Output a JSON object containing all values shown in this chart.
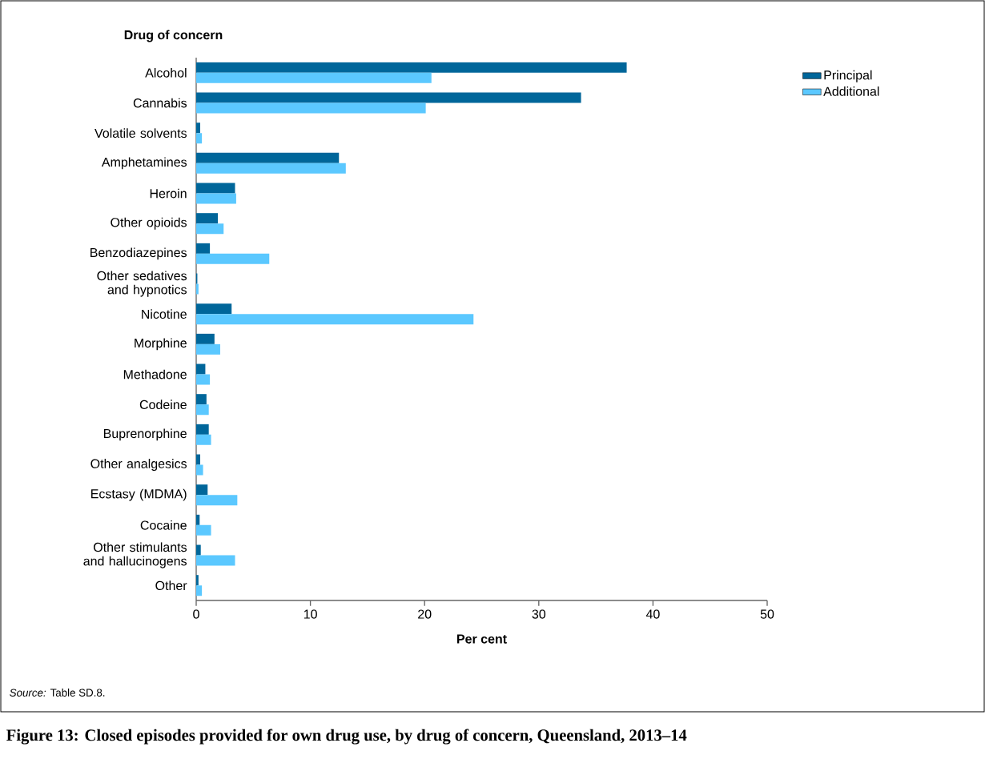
{
  "chart_data": {
    "type": "bar",
    "orientation": "horizontal",
    "title": "Figure 13: Closed episodes provided for own drug use, by drug of concern, Queensland, 2013–14",
    "ylabel": "Drug of concern",
    "xlabel": "Per cent",
    "annotations": [
      "*Source:* Table SD.8."
    ],
    "categories": [
      "Alcohol",
      "Cannabis",
      "Volatile solvents",
      "Amphetamines",
      "Heroin",
      "Other opioids",
      "Benzodiazepines",
      "Other sedatives and hypnotics",
      "Nicotine",
      "Morphine",
      "Methadone",
      "Codeine",
      "Buprenorphine",
      "Other analgesics",
      "Ecstasy (MDMA)",
      "Cocaine",
      "Other stimulants and hallucinogens",
      "Other"
    ],
    "series": [
      {
        "name": "Principal",
        "color": "#00669a",
        "values": [
          37.7,
          33.7,
          0.35,
          12.5,
          3.4,
          1.9,
          1.2,
          0.1,
          3.1,
          1.6,
          0.8,
          0.9,
          1.1,
          0.35,
          1.0,
          0.3,
          0.4,
          0.2
        ]
      },
      {
        "name": "Additional",
        "color": "#5bc8ff",
        "values": [
          20.6,
          20.1,
          0.5,
          13.1,
          3.5,
          2.4,
          6.4,
          0.2,
          24.3,
          2.1,
          1.2,
          1.1,
          1.3,
          0.6,
          3.6,
          1.3,
          3.4,
          0.5
        ]
      }
    ],
    "xlim": [
      0,
      50
    ],
    "xticks": [
      0,
      10,
      20,
      30,
      40,
      50
    ],
    "legend": "top right"
  }
}
